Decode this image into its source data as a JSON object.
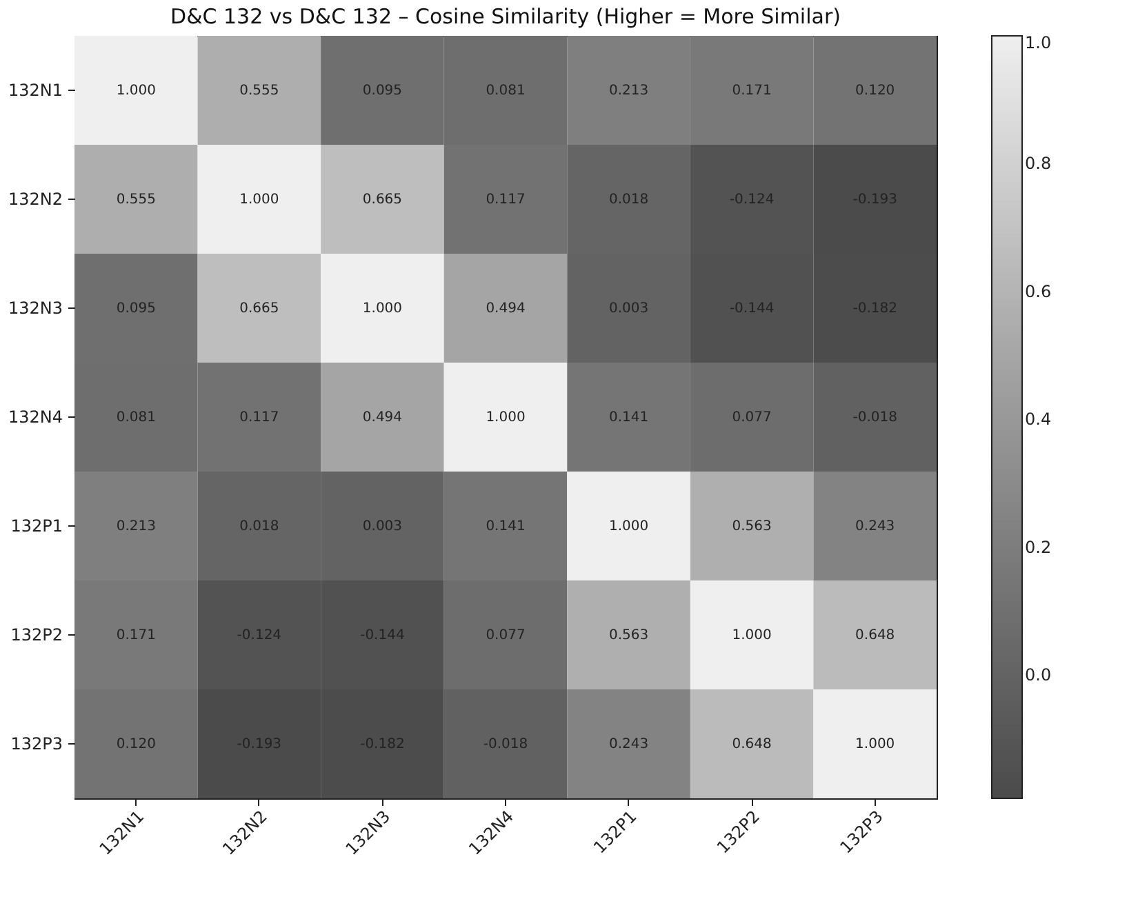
{
  "chart_data": {
    "type": "heatmap",
    "title": "D&C 132 vs D&C 132 – Cosine Similarity (Higher = More Similar)",
    "categories": [
      "132N1",
      "132N2",
      "132N3",
      "132N4",
      "132P1",
      "132P2",
      "132P3"
    ],
    "y_categories": [
      "132N1",
      "132N2",
      "132N3",
      "132N4",
      "132P1",
      "132P2",
      "132P3"
    ],
    "cells": [
      [
        1.0,
        0.555,
        0.095,
        0.081,
        0.213,
        0.171,
        0.12
      ],
      [
        0.555,
        1.0,
        0.665,
        0.117,
        0.018,
        -0.124,
        -0.193
      ],
      [
        0.095,
        0.665,
        1.0,
        0.494,
        0.003,
        -0.144,
        -0.182
      ],
      [
        0.081,
        0.117,
        0.494,
        1.0,
        0.141,
        0.077,
        -0.018
      ],
      [
        0.213,
        0.018,
        0.003,
        0.141,
        1.0,
        0.563,
        0.243
      ],
      [
        0.171,
        -0.124,
        -0.144,
        0.077,
        0.563,
        1.0,
        0.648
      ],
      [
        0.12,
        -0.193,
        -0.182,
        -0.018,
        0.243,
        0.648,
        1.0
      ]
    ],
    "cell_labels": [
      [
        "1.000",
        "0.555",
        "0.095",
        "0.081",
        "0.213",
        "0.171",
        "0.120"
      ],
      [
        "0.555",
        "1.000",
        "0.665",
        "0.117",
        "0.018",
        "-0.124",
        "-0.193"
      ],
      [
        "0.095",
        "0.665",
        "1.000",
        "0.494",
        "0.003",
        "-0.144",
        "-0.182"
      ],
      [
        "0.081",
        "0.117",
        "0.494",
        "1.000",
        "0.141",
        "0.077",
        "-0.018"
      ],
      [
        "0.213",
        "0.018",
        "0.003",
        "0.141",
        "1.000",
        "0.563",
        "0.243"
      ],
      [
        "0.171",
        "-0.124",
        "-0.144",
        "0.077",
        "0.563",
        "1.000",
        "0.648"
      ],
      [
        "0.120",
        "-0.193",
        "-0.182",
        "-0.018",
        "0.243",
        "0.648",
        "1.000"
      ]
    ],
    "clim": [
      -0.193,
      1.0
    ],
    "cticks": [
      {
        "value": 0,
        "label": "0.0"
      },
      {
        "value": 0.2,
        "label": "0.2"
      },
      {
        "value": 0.4,
        "label": "0.4"
      },
      {
        "value": 0.6,
        "label": "0.6"
      },
      {
        "value": 0.8,
        "label": "0.8"
      },
      {
        "value": 1.0,
        "label": "1.0"
      }
    ]
  }
}
